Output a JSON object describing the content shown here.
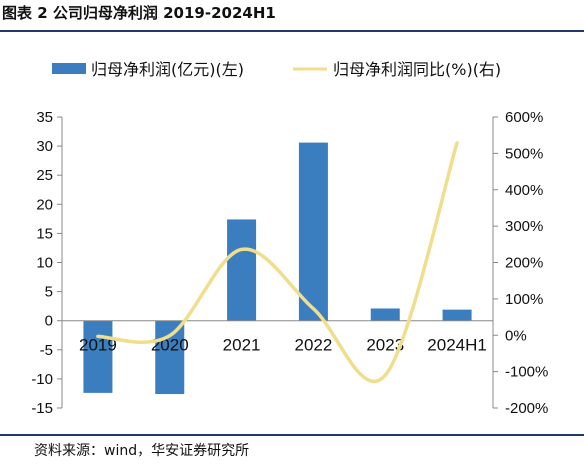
{
  "figure": {
    "title": "图表 2 公司归母净利润 2019-2024H1",
    "source": "资料来源：wind，华安证券研究所"
  },
  "chart_data": {
    "type": "bar",
    "categories": [
      "2019",
      "2020",
      "2021",
      "2022",
      "2023",
      "2024H1"
    ],
    "series": [
      {
        "name": "归母净利润(亿元)(左)",
        "type": "bar",
        "axis": "left",
        "color": "#3a7ebf",
        "values": [
          -12.4,
          -12.6,
          17.4,
          30.6,
          2.1,
          1.9
        ]
      },
      {
        "name": "归母净利润同比(%)(右)",
        "type": "line",
        "axis": "right",
        "color": "#f0de8c",
        "smooth": true,
        "values": [
          -3,
          -1,
          236,
          73,
          -110,
          529
        ]
      }
    ],
    "y_left": {
      "min": -15,
      "max": 35,
      "ticks": [
        "-15",
        "-10",
        "-5",
        "0",
        "5",
        "10",
        "15",
        "20",
        "25",
        "30",
        "35"
      ]
    },
    "y_right": {
      "min": -200,
      "max": 600,
      "ticks": [
        "-200%",
        "-100%",
        "0%",
        "100%",
        "200%",
        "300%",
        "400%",
        "500%",
        "600%"
      ]
    },
    "legend_position": "top",
    "grid": false
  }
}
